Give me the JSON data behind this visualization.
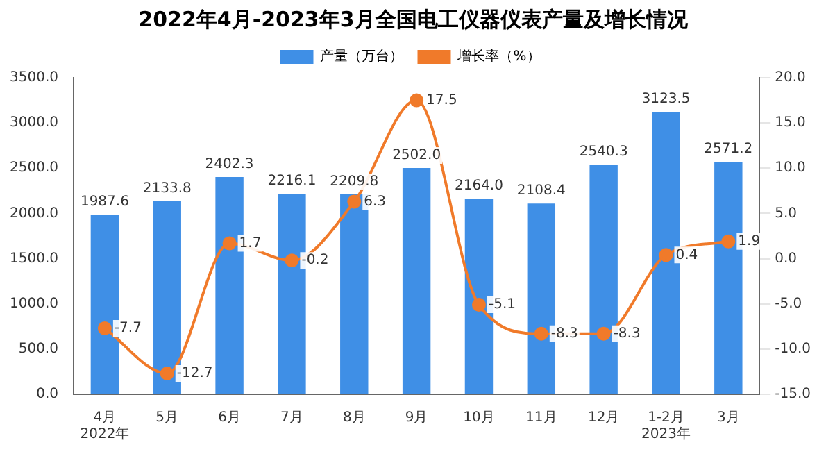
{
  "chart_data": {
    "type": "bar",
    "title": "2022年4月-2023年3月全国电工仪器仪表产量及增长情况",
    "categories": [
      "4月\n2022年",
      "5月",
      "6月",
      "7月",
      "8月",
      "9月",
      "10月",
      "11月",
      "12月",
      "1-2月\n2023年",
      "3月"
    ],
    "series": [
      {
        "name": "产量（万台）",
        "color": "#3f8fe6",
        "values": [
          1987.6,
          2133.8,
          2402.3,
          2216.1,
          2209.8,
          2502.0,
          2164.0,
          2108.4,
          2540.3,
          3123.5,
          2571.2
        ],
        "value_labels": [
          "1987.6",
          "2133.8",
          "2402.3",
          "2216.1",
          "2209.8",
          "2502.0",
          "2164.0",
          "2108.4",
          "2540.3",
          "3123.5",
          "2571.2"
        ]
      },
      {
        "name": "增长率（%）",
        "type": "line",
        "axis": "y2",
        "color": "#f07a2a",
        "marker": "circle",
        "values": [
          -7.7,
          -12.7,
          1.7,
          -0.2,
          6.3,
          17.5,
          -5.1,
          -8.3,
          -8.3,
          0.4,
          1.9
        ],
        "value_labels": [
          "-7.7",
          "-12.7",
          "1.7",
          "-0.2",
          "6.3",
          "17.5",
          "-5.1",
          "-8.3",
          "-8.3",
          "0.4",
          "1.9"
        ]
      }
    ],
    "ylim": [
      0,
      3500
    ],
    "yticks": [
      {
        "value": 0,
        "label": "0.0"
      },
      {
        "value": 500,
        "label": "500.0"
      },
      {
        "value": 1000,
        "label": "1000.0"
      },
      {
        "value": 1500,
        "label": "1500.0"
      },
      {
        "value": 2000,
        "label": "2000.0"
      },
      {
        "value": 2500,
        "label": "2500.0"
      },
      {
        "value": 3000,
        "label": "3000.0"
      },
      {
        "value": 3500,
        "label": "3500.0"
      }
    ],
    "y2lim": [
      -15,
      20
    ],
    "y2ticks": [
      {
        "value": -15,
        "label": "-15.0"
      },
      {
        "value": -10,
        "label": "-10.0"
      },
      {
        "value": -5,
        "label": "-5.0"
      },
      {
        "value": 0,
        "label": "0.0"
      },
      {
        "value": 5,
        "label": "5.0"
      },
      {
        "value": 10,
        "label": "10.0"
      },
      {
        "value": 15,
        "label": "15.0"
      },
      {
        "value": 20,
        "label": "20.0"
      }
    ],
    "legend": "top",
    "grid": false
  }
}
